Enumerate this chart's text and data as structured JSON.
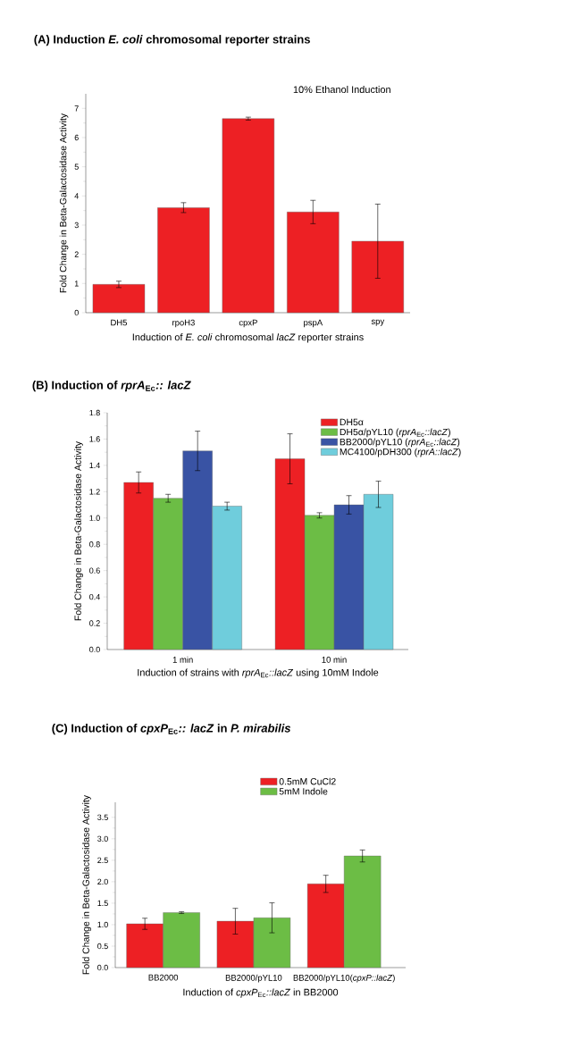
{
  "chart_data": [
    {
      "type": "bar",
      "title": "(A) Induction *E. coli* chromosomal reporter strains",
      "xlabel": "Induction of *E. coli* chromosomal *lacZ* reporter strains",
      "ylabel": "Fold Change in Beta-Galactosidase Activity",
      "annotations": [
        "10% Ethanol Induction"
      ],
      "categories": [
        "DH5",
        "rpoH3",
        "cpxP",
        "pspA",
        "spy"
      ],
      "values": [
        0.97,
        3.6,
        6.65,
        3.45,
        2.45
      ],
      "color": "#ed2024",
      "errors": [
        0.11,
        0.17,
        0.05,
        0.4,
        1.27
      ],
      "ylim": [
        0,
        7.5
      ],
      "yticks": [
        0,
        1,
        2,
        3,
        4,
        5,
        6,
        7
      ]
    },
    {
      "type": "bar",
      "title": "(B) Induction of *rprA*$_{Ec}$*:: lacZ*",
      "xlabel": "Induction of strains with *rprA*$_{Ec}$*::lacZ* using 10mM Indole",
      "ylabel": "Fold Change in Beta-Galactosidase Activity",
      "categories": [
        "1 min",
        "10 min"
      ],
      "series": [
        {
          "name": "DH5α",
          "color": "#ed2024",
          "values": [
            1.27,
            1.45
          ],
          "errors": [
            0.08,
            0.19
          ]
        },
        {
          "name": "DH5α/pYL10 (*rprA*$_{Ec}$*::lacZ*)",
          "color": "#6cbd45",
          "values": [
            1.15,
            1.02
          ],
          "errors": [
            0.03,
            0.02
          ]
        },
        {
          "name": "BB2000/pYL10 (*rprA*$_{Ec}$*::lacZ*)",
          "color": "#3953a4",
          "values": [
            1.51,
            1.1
          ],
          "errors": [
            0.15,
            0.07
          ]
        },
        {
          "name": "MC4100/pDH300 (*rprA::lacZ*)",
          "color": "#6fcddc",
          "values": [
            1.09,
            1.18
          ],
          "errors": [
            0.03,
            0.1
          ]
        }
      ],
      "ylim": [
        0,
        1.8
      ],
      "yticks": [
        {
          "value": 0,
          "label": "0.0"
        },
        0.2,
        0.4,
        0.6,
        0.8,
        {
          "value": 1,
          "label": "1.0"
        },
        1.2,
        1.4,
        1.6,
        1.8
      ],
      "legend": "top right"
    },
    {
      "type": "bar",
      "title": "(C) Induction of *cpxP*$_{Ec}$*:: lacZ* in *P. mirabilis*",
      "xlabel": "Induction of *cpxP*$_{Ec}$*::lacZ* in BB2000",
      "ylabel": "Fold Change in Beta-Galactosidase Activity",
      "categories": [
        "BB2000",
        "BB2000/pYL10",
        "BB2000/pYL10(*cpxP::lacZ*)"
      ],
      "series": [
        {
          "name": "0.5mM CuCl2",
          "color": "#ed2024",
          "values": [
            1.02,
            1.08,
            1.95
          ],
          "errors": [
            0.13,
            0.3,
            0.2
          ]
        },
        {
          "name": "5mM Indole",
          "color": "#6cbd45",
          "values": [
            1.28,
            1.16,
            2.6
          ],
          "errors": [
            0.02,
            0.35,
            0.14
          ]
        }
      ],
      "ylim": [
        0,
        3.85
      ],
      "yticks": [
        {
          "value": 0,
          "label": "0.0"
        },
        0.5,
        {
          "value": 1,
          "label": "1.0"
        },
        1.5,
        {
          "value": 2,
          "label": "2.0"
        },
        2.5,
        {
          "value": 3,
          "label": "3.0"
        },
        3.5
      ],
      "legend": "top"
    }
  ]
}
